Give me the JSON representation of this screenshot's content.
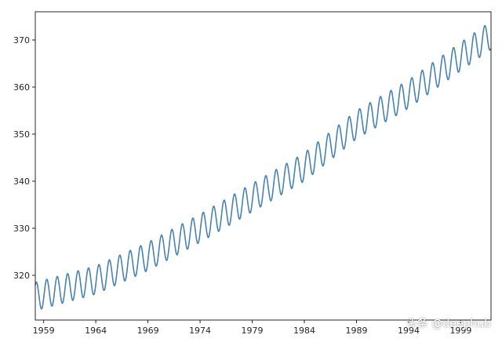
{
  "chart_data": {
    "type": "line",
    "title": "",
    "xlabel": "",
    "ylabel": "",
    "xlim": [
      1958.2,
      2001.9
    ],
    "ylim": [
      310.5,
      376.0
    ],
    "x_ticks": [
      1959,
      1964,
      1969,
      1974,
      1979,
      1984,
      1989,
      1994,
      1999
    ],
    "x_tick_labels": [
      "1959",
      "1964",
      "1969",
      "1974",
      "1979",
      "1984",
      "1989",
      "1994",
      "1999"
    ],
    "y_ticks": [
      320,
      330,
      340,
      350,
      360,
      370
    ],
    "y_tick_labels": [
      "320",
      "330",
      "340",
      "350",
      "360",
      "370"
    ],
    "grid": false,
    "legend": "none",
    "series_color": "#4682b4",
    "trend_points": [
      {
        "year": 1958.2,
        "value": 315.5
      },
      {
        "year": 1964,
        "value": 319.0
      },
      {
        "year": 1969,
        "value": 324.0
      },
      {
        "year": 1974,
        "value": 330.0
      },
      {
        "year": 1979,
        "value": 336.5
      },
      {
        "year": 1984,
        "value": 343.0
      },
      {
        "year": 1989,
        "value": 352.0
      },
      {
        "year": 1994,
        "value": 358.5
      },
      {
        "year": 1999,
        "value": 366.5
      },
      {
        "year": 2001.9,
        "value": 371.0
      }
    ],
    "seasonal_amplitude": 3.0,
    "cycle_period_years": 1
  },
  "watermark": "头条 @deephub"
}
